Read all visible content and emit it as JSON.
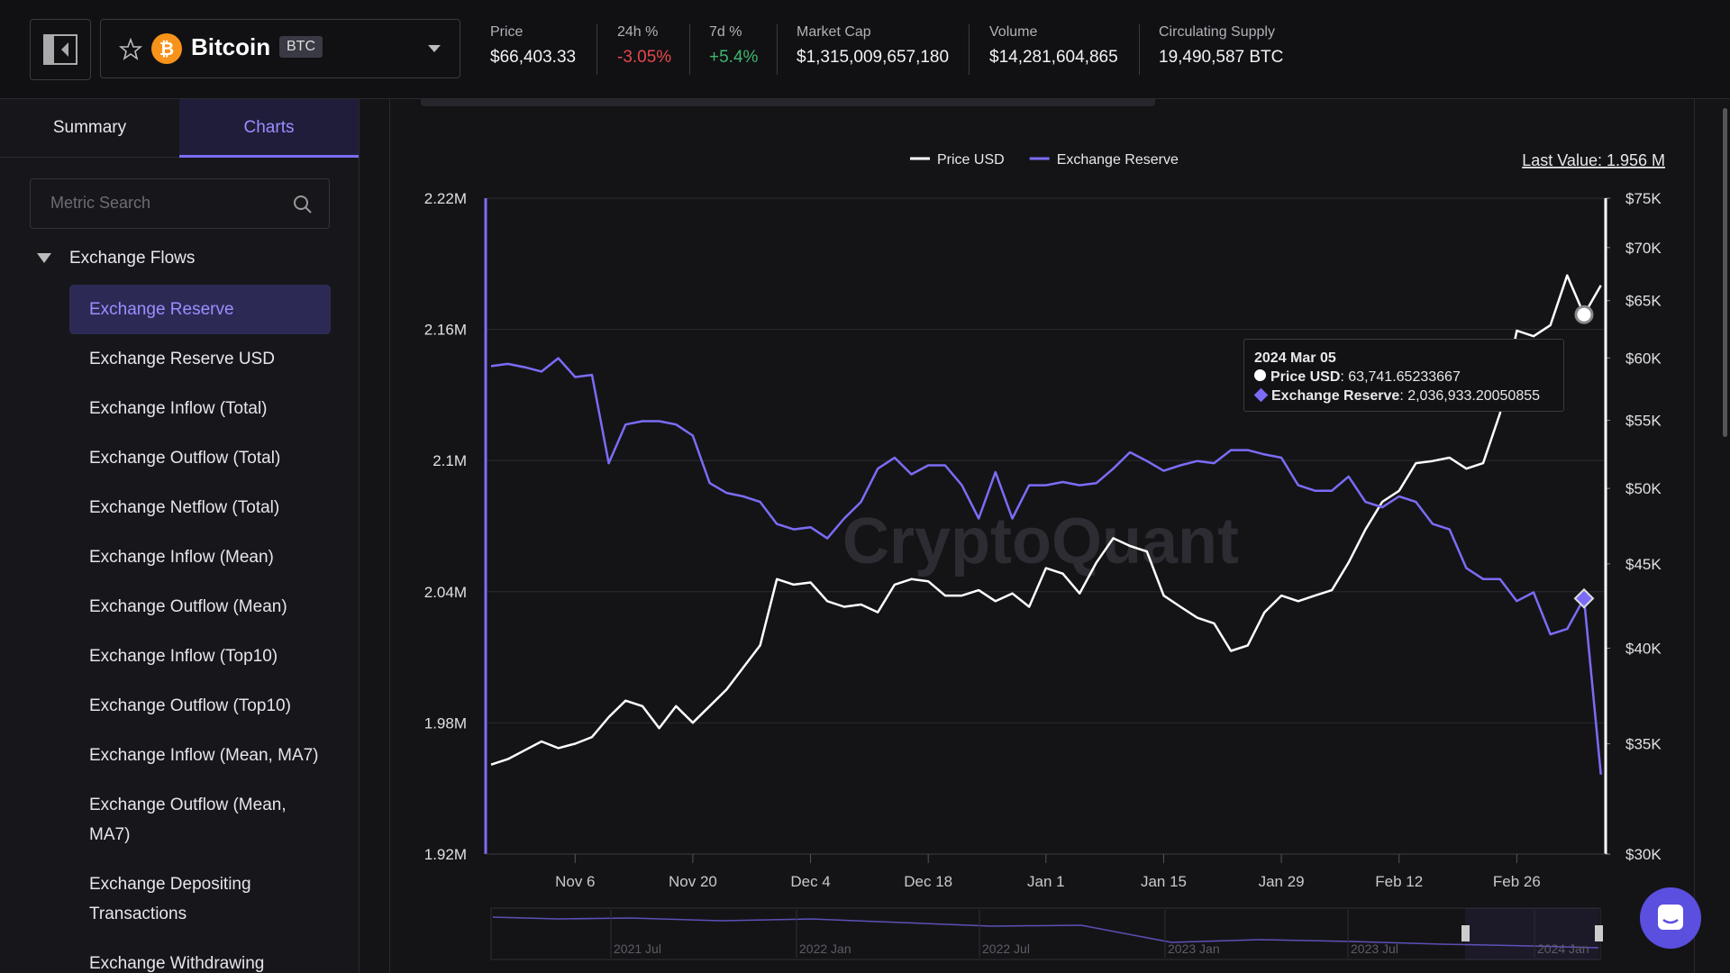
{
  "header": {
    "coin": {
      "name": "Bitcoin",
      "symbol": "BTC"
    },
    "stats": [
      {
        "label": "Price",
        "value": "$66,403.33"
      },
      {
        "label": "24h %",
        "value": "-3.05%"
      },
      {
        "label": "7d %",
        "value": "+5.4%"
      },
      {
        "label": "Market Cap",
        "value": "$1,315,009,657,180"
      },
      {
        "label": "Volume",
        "value": "$14,281,604,865"
      },
      {
        "label": "Circulating Supply",
        "value": "19,490,587 BTC"
      }
    ]
  },
  "sidebar": {
    "tabs": [
      "Summary",
      "Charts"
    ],
    "search_placeholder": "Metric Search",
    "group": "Exchange Flows",
    "items": [
      "Exchange Reserve",
      "Exchange Reserve USD",
      "Exchange Inflow (Total)",
      "Exchange Outflow (Total)",
      "Exchange Netflow (Total)",
      "Exchange Inflow (Mean)",
      "Exchange Outflow (Mean)",
      "Exchange Inflow (Top10)",
      "Exchange Outflow (Top10)",
      "Exchange Inflow (Mean, MA7)",
      "Exchange Outflow (Mean, MA7)",
      "Exchange Depositing Transactions",
      "Exchange Withdrawing"
    ]
  },
  "chart_data": {
    "type": "line",
    "last_value": "Last Value: 1.956 M",
    "watermark": "CryptoQuant",
    "categories": [
      null,
      null,
      null,
      null,
      null,
      "Nov 6",
      null,
      null,
      null,
      null,
      null,
      null,
      "Nov 20",
      null,
      null,
      null,
      null,
      null,
      null,
      "Dec 4",
      null,
      null,
      null,
      null,
      null,
      null,
      "Dec 18",
      null,
      null,
      null,
      null,
      null,
      null,
      "Jan 1",
      null,
      null,
      null,
      null,
      null,
      null,
      "Jan 15",
      null,
      null,
      null,
      null,
      null,
      null,
      "Jan 29",
      null,
      null,
      null,
      null,
      null,
      null,
      "Feb 12",
      null,
      null,
      null,
      null,
      null,
      null,
      "Feb 26",
      null,
      null,
      null,
      null,
      null
    ],
    "series": [
      {
        "name": "Price USD",
        "color": "#ffffff",
        "axis": "y2",
        "values": [
          33992,
          34256,
          34681,
          35111,
          34787,
          35003,
          35329,
          36324,
          37173,
          36887,
          35769,
          36887,
          36045,
          36887,
          37751,
          38935,
          40155,
          44050,
          43711,
          43847,
          42712,
          42381,
          42513,
          42057,
          43711,
          44050,
          43915,
          43045,
          43045,
          43375,
          42712,
          43176,
          42381,
          44734,
          44391,
          43176,
          45081,
          46638,
          46137,
          45783,
          43045,
          42381,
          41735,
          41413,
          39846,
          40155,
          42057,
          43045,
          42712,
          43045,
          43375,
          45081,
          47215,
          49071,
          49834,
          51796,
          51956,
          52196,
          51400,
          51796,
          55519,
          62328,
          61850,
          62812,
          67327,
          63741.65233667,
          66403
        ]
      },
      {
        "name": "Exchange Reserve",
        "color": "#7b6cf6",
        "axis": "y",
        "values": [
          2143200,
          2144200,
          2142700,
          2140700,
          2146800,
          2138200,
          2139200,
          2098800,
          2116500,
          2118000,
          2118000,
          2116500,
          2111400,
          2089700,
          2085200,
          2083600,
          2081100,
          2071000,
          2068500,
          2069500,
          2064400,
          2073500,
          2081100,
          2096300,
          2101300,
          2093700,
          2097800,
          2097800,
          2088700,
          2073500,
          2094700,
          2073500,
          2088700,
          2088700,
          2090200,
          2088700,
          2089700,
          2096300,
          2103800,
          2099800,
          2095300,
          2097800,
          2099800,
          2098800,
          2104800,
          2104800,
          2102800,
          2101300,
          2088700,
          2086200,
          2086200,
          2092700,
          2081100,
          2078600,
          2083600,
          2081100,
          2071000,
          2068500,
          2050800,
          2045800,
          2045800,
          2035700,
          2039700,
          2020500,
          2023000,
          2036933.20050855,
          1956400
        ]
      }
    ],
    "ylim": [
      1920000,
      2220000
    ],
    "yticks": [
      {
        "value": 1920000,
        "label": "1.92M"
      },
      {
        "value": 1980000,
        "label": "1.98M"
      },
      {
        "value": 2040000,
        "label": "2.04M"
      },
      {
        "value": 2100000,
        "label": "2.1M"
      },
      {
        "value": 2160000,
        "label": "2.16M"
      },
      {
        "value": 2220000,
        "label": "2.22M"
      }
    ],
    "y2lim": [
      30000,
      75000
    ],
    "y2scale": "log",
    "y2ticks": [
      {
        "value": 30000,
        "label": "$30K"
      },
      {
        "value": 35000,
        "label": "$35K"
      },
      {
        "value": 40000,
        "label": "$40K"
      },
      {
        "value": 45000,
        "label": "$45K"
      },
      {
        "value": 50000,
        "label": "$50K"
      },
      {
        "value": 55000,
        "label": "$55K"
      },
      {
        "value": 60000,
        "label": "$60K"
      },
      {
        "value": 65000,
        "label": "$65K"
      },
      {
        "value": 70000,
        "label": "$70K"
      },
      {
        "value": 75000,
        "label": "$75K"
      }
    ],
    "grid": true,
    "legend": "top",
    "tooltip": {
      "date": "2024 Mar 05",
      "rows": [
        {
          "name": "Price USD",
          "value": "63,741.65233667"
        },
        {
          "name": "Exchange Reserve",
          "value": "2,036,933.20050855"
        }
      ]
    },
    "navigator": {
      "labels": [
        "2021 Jul",
        "2022 Jan",
        "2022 Jul",
        "2023 Jan",
        "2023 Jul",
        "2024 Jan"
      ]
    }
  }
}
